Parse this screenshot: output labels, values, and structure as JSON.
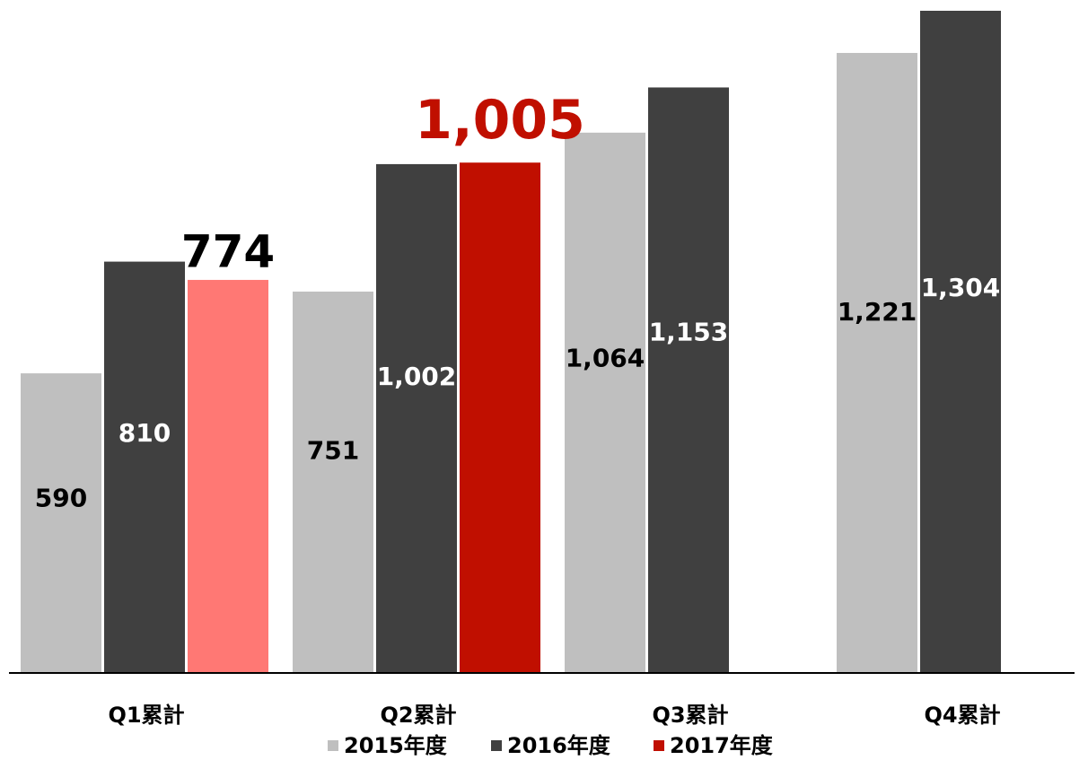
{
  "chart_data": {
    "type": "bar",
    "categories": [
      "Q1累計",
      "Q2累計",
      "Q3累計",
      "Q4累計"
    ],
    "series": [
      {
        "name": "2015年度",
        "color": "#bfbfbf",
        "values": [
          590,
          751,
          1064,
          1221
        ],
        "value_labels": [
          "590",
          "751",
          "1,064",
          "1,221"
        ]
      },
      {
        "name": "2016年度",
        "color": "#404040",
        "values": [
          810,
          1002,
          1153,
          1304
        ],
        "value_labels": [
          "810",
          "1,002",
          "1,153",
          "1,304"
        ]
      },
      {
        "name": "2017年度",
        "color": "#c00f00",
        "values": [
          774,
          1005,
          null,
          null
        ],
        "value_labels": [
          "774",
          "1,005",
          null,
          null
        ],
        "colors": [
          "#ff7874",
          "#c00f00",
          null,
          null
        ],
        "label_colors": [
          "#000000",
          "#c00f00",
          null,
          null
        ]
      }
    ],
    "legend": "bottom"
  }
}
